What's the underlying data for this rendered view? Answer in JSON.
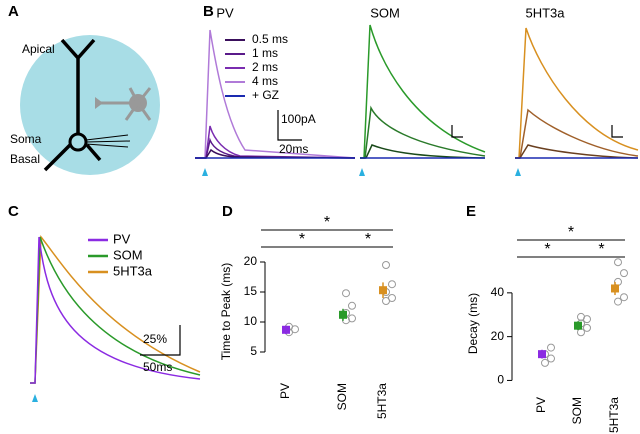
{
  "panel_labels": [
    "A",
    "B",
    "C",
    "D",
    "E"
  ],
  "panel_a": {
    "labels": [
      "Apical",
      "Soma",
      "Basal"
    ]
  },
  "panel_b": {
    "titles": [
      {
        "text": "PV",
        "color": "#8b2be2"
      },
      {
        "text": "SOM",
        "color": "#2a9a2a"
      },
      {
        "text": "5HT3a",
        "color": "#d89020"
      }
    ],
    "legend": [
      {
        "name": "0.5 ms",
        "color": "#3a0f5c"
      },
      {
        "name": "1 ms",
        "color": "#5a1a8a"
      },
      {
        "name": "2 ms",
        "color": "#7a2cb0"
      },
      {
        "name": "4 ms",
        "color": "#b07ad8"
      },
      {
        "name": "+ GZ",
        "color": "#1a2ab0"
      }
    ],
    "scale_labels": [
      "100pA",
      "20ms"
    ]
  },
  "panel_c": {
    "legend": [
      {
        "name": "PV",
        "color": "#8b2be2"
      },
      {
        "name": "SOM",
        "color": "#2a9a2a"
      },
      {
        "name": "5HT3a",
        "color": "#d89020"
      }
    ],
    "scale_labels": [
      "25%",
      "50ms"
    ]
  },
  "chart_data": [
    {
      "type": "dot",
      "ylabel": "Time to Peak (ms)",
      "categories": [
        "PV",
        "SOM",
        "5HT3a"
      ],
      "colors": [
        "#8b2be2",
        "#2a9a2a",
        "#d89020"
      ],
      "values": [
        8.7,
        11.2,
        15.3
      ],
      "errors": [
        0.7,
        1.0,
        1.3
      ],
      "points": [
        [
          8.3,
          8.8,
          9.2
        ],
        [
          10.3,
          10.6,
          11.5,
          12.7,
          14.8
        ],
        [
          13.5,
          14,
          15,
          16.3,
          19.5
        ]
      ],
      "ylim": [
        1.5,
        22
      ],
      "yticks": [
        5,
        10,
        15,
        20
      ],
      "annotations": [
        "*",
        "*",
        "*"
      ]
    },
    {
      "type": "dot",
      "ylabel": "Decay (ms)",
      "categories": [
        "PV",
        "SOM",
        "5HT3a"
      ],
      "colors": [
        "#8b2be2",
        "#2a9a2a",
        "#d89020"
      ],
      "values": [
        12,
        25,
        42
      ],
      "errors": [
        2,
        2,
        3
      ],
      "points": [
        [
          8,
          10,
          12,
          15
        ],
        [
          22,
          24,
          26,
          28,
          29
        ],
        [
          36,
          38,
          45,
          49,
          54
        ]
      ],
      "ylim": [
        -3,
        55
      ],
      "yticks": [
        0,
        20,
        40
      ],
      "annotations": [
        "*",
        "*",
        "*"
      ]
    }
  ]
}
